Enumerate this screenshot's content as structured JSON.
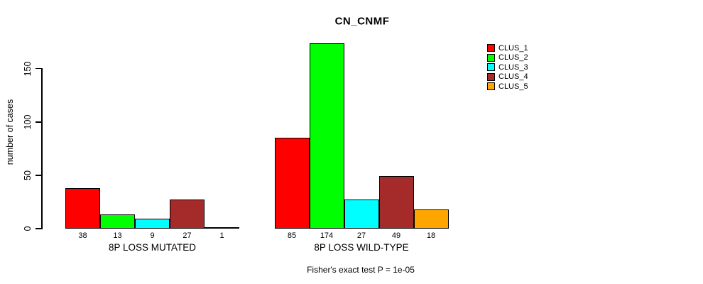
{
  "chart_data": {
    "type": "bar",
    "title": "CN_CNMF",
    "ylabel": "number of cases",
    "xlabel": "",
    "footnote": "Fisher's exact test P = 1e-05",
    "yticks": [
      0,
      50,
      100,
      150
    ],
    "ylim": [
      0,
      174
    ],
    "grid": false,
    "legend_position": "top-right",
    "background": "#FFFFFF",
    "axis_color": "#000000",
    "categories": [
      "8P LOSS MUTATED",
      "8P LOSS WILD-TYPE"
    ],
    "series": [
      {
        "name": "CLUS_1",
        "color": "#FF0000",
        "values": [
          38,
          85
        ]
      },
      {
        "name": "CLUS_2",
        "color": "#00FF00",
        "values": [
          13,
          174
        ]
      },
      {
        "name": "CLUS_3",
        "color": "#00FFFF",
        "values": [
          9,
          27
        ]
      },
      {
        "name": "CLUS_4",
        "color": "#A52A2A",
        "values": [
          27,
          49
        ]
      },
      {
        "name": "CLUS_5",
        "color": "#FFA500",
        "values": [
          1,
          18
        ]
      }
    ],
    "bar_value_labels": {
      "8P LOSS MUTATED": [
        38,
        13,
        9,
        27,
        1
      ],
      "8P LOSS WILD-TYPE": [
        85,
        174,
        27,
        49,
        18
      ]
    }
  }
}
